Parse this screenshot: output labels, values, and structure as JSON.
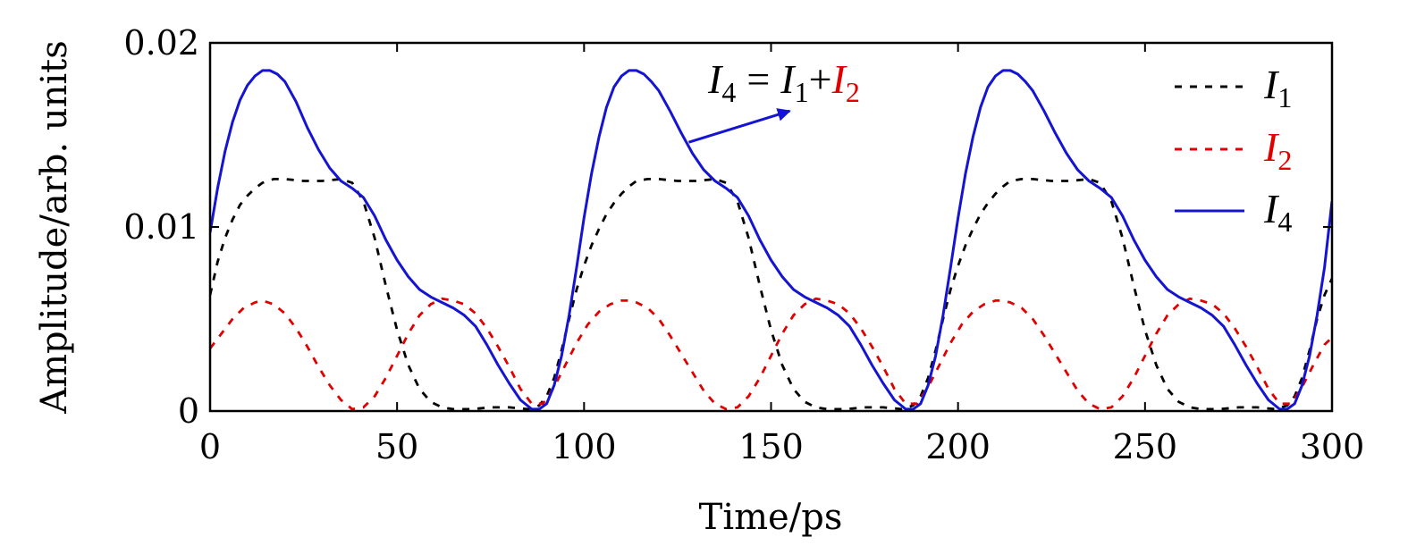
{
  "chart_data": {
    "type": "line",
    "xlabel": "Time/ps",
    "ylabel": "Amplitude/arb. units",
    "xlim": [
      0,
      300
    ],
    "ylim": [
      0,
      0.02
    ],
    "xticks": [
      0,
      50,
      100,
      150,
      200,
      250,
      300
    ],
    "xtick_labels": [
      "0",
      "50",
      "100",
      "150",
      "200",
      "250",
      "300"
    ],
    "yticks": [
      0,
      0.01,
      0.02
    ],
    "ytick_labels": [
      "0",
      "0.01",
      "0.02"
    ],
    "grid": false,
    "legend_position": "top-right",
    "series": [
      {
        "name": "I1",
        "label_main": "I",
        "label_sub": "1",
        "color": "#000000",
        "style": "dashed",
        "x": [
          0,
          2,
          4,
          6,
          8,
          10,
          12,
          14,
          17,
          20,
          25,
          30,
          35,
          38,
          41,
          44,
          47,
          50,
          53,
          56,
          59,
          62,
          65,
          70,
          75,
          80,
          85,
          88,
          90,
          92,
          94,
          96,
          98,
          100,
          102,
          104,
          106,
          108,
          110,
          112,
          114,
          117,
          120,
          125,
          130,
          135,
          138,
          141,
          144,
          147,
          150,
          153,
          156,
          159,
          162,
          165,
          170,
          175,
          180,
          185,
          188,
          190,
          192,
          194,
          196,
          198,
          200,
          202,
          204,
          206,
          208,
          210,
          212,
          214,
          217,
          220,
          225,
          230,
          235,
          238,
          241,
          244,
          247,
          250,
          253,
          256,
          259,
          262,
          265,
          270,
          275,
          280,
          285,
          288,
          290,
          292,
          294,
          296,
          298,
          300
        ],
        "y": [
          0.0063,
          0.0081,
          0.0094,
          0.0104,
          0.0112,
          0.0117,
          0.0121,
          0.0124,
          0.0126,
          0.0126,
          0.0125,
          0.0125,
          0.0126,
          0.0124,
          0.0114,
          0.0094,
          0.0068,
          0.0044,
          0.0025,
          0.0012,
          0.0005,
          0.0002,
          0.0001,
          0.0001,
          0.0002,
          0.0002,
          0.0001,
          0.0003,
          0.0008,
          0.0018,
          0.0033,
          0.005,
          0.0066,
          0.0079,
          0.009,
          0.0099,
          0.0107,
          0.0113,
          0.0118,
          0.0122,
          0.0125,
          0.0126,
          0.0126,
          0.0125,
          0.0125,
          0.0126,
          0.0124,
          0.0114,
          0.0094,
          0.0068,
          0.0044,
          0.0025,
          0.0012,
          0.0005,
          0.0002,
          0.0001,
          0.0001,
          0.0002,
          0.0002,
          0.0001,
          0.0003,
          0.0008,
          0.0018,
          0.0033,
          0.005,
          0.0066,
          0.0079,
          0.009,
          0.0099,
          0.0107,
          0.0113,
          0.0118,
          0.0122,
          0.0125,
          0.0126,
          0.0126,
          0.0125,
          0.0125,
          0.0126,
          0.0124,
          0.0114,
          0.0094,
          0.0068,
          0.0044,
          0.0025,
          0.0012,
          0.0005,
          0.0002,
          0.0001,
          0.0001,
          0.0002,
          0.0002,
          0.0001,
          0.0003,
          0.0008,
          0.0018,
          0.0033,
          0.005,
          0.0063,
          0.0072
        ]
      },
      {
        "name": "I2",
        "label_main": "I",
        "label_sub": "2",
        "color": "#e00000",
        "style": "dashed",
        "x": [
          0,
          3,
          6,
          9,
          12,
          14,
          17,
          20,
          23,
          26,
          29,
          32,
          35,
          38,
          41,
          44,
          47,
          50,
          53,
          56,
          59,
          62,
          65,
          68,
          71,
          74,
          77,
          80,
          83,
          86,
          89,
          92,
          95,
          98,
          101,
          104,
          107,
          110,
          112,
          114,
          117,
          120,
          123,
          126,
          129,
          132,
          135,
          138,
          141,
          144,
          147,
          150,
          153,
          156,
          159,
          162,
          165,
          168,
          171,
          174,
          177,
          180,
          183,
          186,
          189,
          192,
          195,
          198,
          201,
          204,
          207,
          210,
          212,
          214,
          217,
          220,
          223,
          226,
          229,
          232,
          235,
          238,
          241,
          244,
          247,
          250,
          253,
          256,
          259,
          262,
          265,
          268,
          271,
          274,
          277,
          280,
          283,
          286,
          289,
          292,
          295,
          298,
          300
        ],
        "y": [
          0.0034,
          0.0042,
          0.005,
          0.0056,
          0.0059,
          0.006,
          0.0058,
          0.0053,
          0.0045,
          0.0035,
          0.0024,
          0.0014,
          0.0006,
          0.0001,
          0.0002,
          0.0008,
          0.0018,
          0.003,
          0.0042,
          0.0052,
          0.0058,
          0.0061,
          0.006,
          0.0058,
          0.0053,
          0.0045,
          0.0035,
          0.0024,
          0.0012,
          0.0004,
          0.0004,
          0.0013,
          0.0025,
          0.0037,
          0.0047,
          0.0054,
          0.0058,
          0.006,
          0.006,
          0.0059,
          0.0056,
          0.005,
          0.0041,
          0.0031,
          0.0021,
          0.0011,
          0.0004,
          0.0001,
          0.0002,
          0.0008,
          0.0018,
          0.003,
          0.0042,
          0.0052,
          0.0058,
          0.0061,
          0.006,
          0.0058,
          0.0053,
          0.0045,
          0.0035,
          0.0024,
          0.0012,
          0.0004,
          0.0004,
          0.0013,
          0.0025,
          0.0037,
          0.0047,
          0.0054,
          0.0058,
          0.006,
          0.006,
          0.0059,
          0.0056,
          0.005,
          0.0041,
          0.0031,
          0.0021,
          0.0011,
          0.0004,
          0.0001,
          0.0002,
          0.0008,
          0.0018,
          0.003,
          0.0042,
          0.0052,
          0.0058,
          0.0061,
          0.006,
          0.0058,
          0.0053,
          0.0045,
          0.0035,
          0.0024,
          0.0012,
          0.0004,
          0.0004,
          0.0013,
          0.0025,
          0.0036,
          0.004
        ]
      },
      {
        "name": "I4",
        "label_main": "I",
        "label_sub": "4",
        "color": "#1414d2",
        "style": "solid",
        "x": [
          0,
          2,
          4,
          6,
          8,
          10,
          12,
          14,
          16,
          18,
          20,
          23,
          26,
          29,
          32,
          35,
          38,
          41,
          44,
          47,
          50,
          53,
          56,
          59,
          62,
          65,
          68,
          71,
          74,
          77,
          80,
          83,
          86,
          88,
          90,
          92,
          94,
          96,
          98,
          100,
          102,
          104,
          106,
          108,
          110,
          112,
          114,
          116,
          118,
          120,
          123,
          126,
          129,
          132,
          135,
          138,
          141,
          144,
          147,
          150,
          153,
          156,
          159,
          162,
          165,
          168,
          171,
          174,
          177,
          180,
          183,
          186,
          188,
          190,
          192,
          194,
          196,
          198,
          200,
          202,
          204,
          206,
          208,
          210,
          212,
          214,
          216,
          218,
          220,
          223,
          226,
          229,
          232,
          235,
          238,
          241,
          244,
          247,
          250,
          253,
          256,
          259,
          262,
          265,
          268,
          271,
          274,
          277,
          280,
          283,
          286,
          288,
          290,
          292,
          294,
          296,
          298,
          300
        ],
        "y": [
          0.0097,
          0.0121,
          0.0141,
          0.0157,
          0.0169,
          0.0177,
          0.0182,
          0.0185,
          0.0185,
          0.0183,
          0.0179,
          0.0168,
          0.0154,
          0.0142,
          0.0132,
          0.0125,
          0.0121,
          0.0116,
          0.0106,
          0.0093,
          0.0082,
          0.0073,
          0.0066,
          0.0062,
          0.0059,
          0.0056,
          0.0052,
          0.0046,
          0.0036,
          0.0025,
          0.0015,
          0.0006,
          0.0001,
          0.0001,
          0.0004,
          0.0014,
          0.003,
          0.0052,
          0.0078,
          0.0105,
          0.0129,
          0.0149,
          0.0165,
          0.0176,
          0.0182,
          0.0185,
          0.0185,
          0.0183,
          0.0179,
          0.0174,
          0.0163,
          0.0151,
          0.014,
          0.0131,
          0.0125,
          0.0121,
          0.0116,
          0.0106,
          0.0093,
          0.0082,
          0.0073,
          0.0066,
          0.0062,
          0.0059,
          0.0056,
          0.0052,
          0.0046,
          0.0036,
          0.0025,
          0.0015,
          0.0006,
          0.0001,
          0.0001,
          0.0004,
          0.0014,
          0.003,
          0.0052,
          0.0078,
          0.0105,
          0.0129,
          0.0149,
          0.0165,
          0.0176,
          0.0182,
          0.0185,
          0.0185,
          0.0183,
          0.0179,
          0.0174,
          0.0163,
          0.0151,
          0.014,
          0.0131,
          0.0125,
          0.0121,
          0.0116,
          0.0106,
          0.0093,
          0.0082,
          0.0073,
          0.0066,
          0.0062,
          0.0059,
          0.0056,
          0.0052,
          0.0046,
          0.0036,
          0.0025,
          0.0015,
          0.0006,
          0.0001,
          0.0001,
          0.0004,
          0.0014,
          0.003,
          0.0052,
          0.0078,
          0.0114
        ]
      }
    ],
    "annotation": {
      "lhs_main": "I",
      "lhs_sub": "4",
      "equals": "=",
      "term1_main": "I",
      "term1_sub": "1",
      "plus": "+",
      "term2_main": "I",
      "term2_sub": "2",
      "term2_color": "#e00000",
      "arrow_color": "#1414d2",
      "arrow_from": [
        128,
        0.0146
      ],
      "arrow_to": [
        155,
        0.0163
      ]
    }
  }
}
